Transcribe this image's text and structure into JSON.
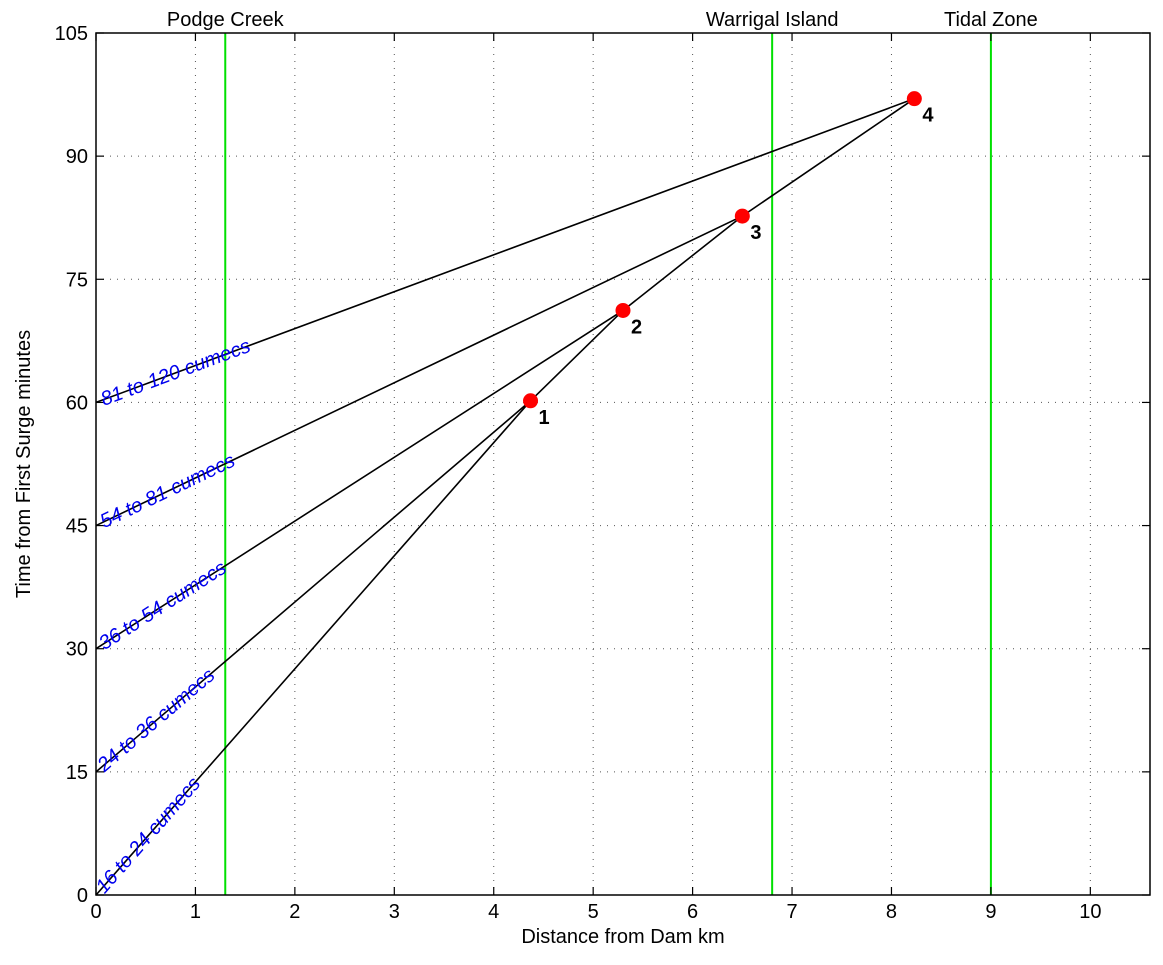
{
  "chart_data": {
    "type": "line",
    "xlabel": "Distance from Dam km",
    "ylabel": "Time from First Surge minutes",
    "xlim": [
      0,
      10.6
    ],
    "ylim": [
      0,
      105
    ],
    "xticks": [
      0,
      1,
      2,
      3,
      4,
      5,
      6,
      7,
      8,
      9,
      10
    ],
    "yticks": [
      0,
      15,
      30,
      45,
      60,
      75,
      90,
      105
    ],
    "grid": true,
    "vertical_markers": [
      {
        "label": "Podge Creek",
        "x": 1.3,
        "color": "#00e000"
      },
      {
        "label": "Warrigal Island",
        "x": 6.8,
        "color": "#00e000"
      },
      {
        "label": "Tidal Zone",
        "x": 9.0,
        "color": "#00e000"
      }
    ],
    "points": [
      {
        "label": "1",
        "x": 4.37,
        "y": 60.2
      },
      {
        "label": "2",
        "x": 5.3,
        "y": 71.2
      },
      {
        "label": "3",
        "x": 6.5,
        "y": 82.7
      },
      {
        "label": "4",
        "x": 8.23,
        "y": 97.0
      }
    ],
    "series": [
      {
        "name": "16 to 24 cumecs",
        "x": [
          0,
          4.37
        ],
        "y": [
          0,
          60.2
        ]
      },
      {
        "name": "24 to 36 cumecs",
        "x": [
          0,
          4.37,
          5.3
        ],
        "y": [
          15,
          60.2,
          71.2
        ]
      },
      {
        "name": "36 to 54 cumecs",
        "x": [
          0,
          5.3,
          6.5
        ],
        "y": [
          30,
          71.2,
          82.7
        ]
      },
      {
        "name": "54 to 81 cumecs",
        "x": [
          0,
          6.5,
          8.23
        ],
        "y": [
          45,
          82.7,
          97.0
        ]
      },
      {
        "name": "81 to 120 cumecs",
        "x": [
          0,
          8.23
        ],
        "y": [
          60,
          97.0
        ]
      }
    ],
    "colors": {
      "lines": "#000000",
      "markers": "#ff0000",
      "band_labels": "#0000ee",
      "verticals": "#00e000"
    }
  }
}
